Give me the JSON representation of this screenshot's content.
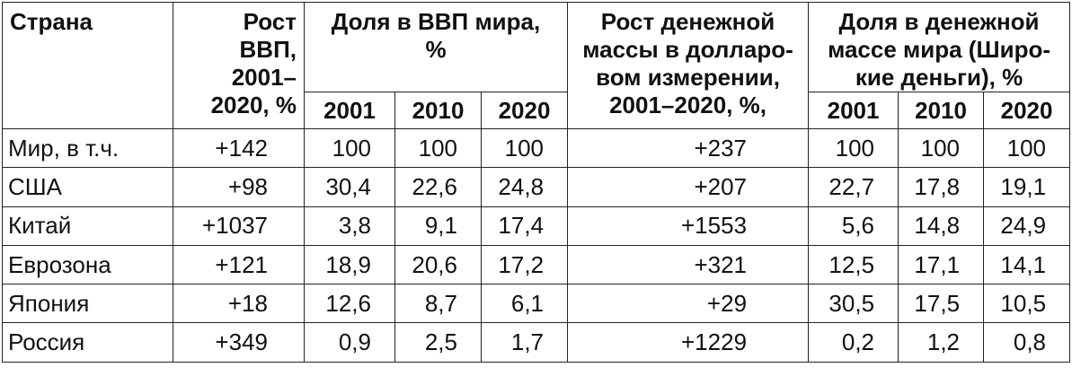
{
  "headers": {
    "country": "Страна",
    "gdp_growth": [
      "Рост",
      "ВВП,",
      "2001–",
      "2020, %"
    ],
    "gdp_share": [
      "Доля в ВВП мира,",
      "%"
    ],
    "money_growth": [
      "Рост денежной",
      "массы в долларо-",
      "вом измерении,",
      "2001–2020, %,"
    ],
    "money_share": [
      "Доля в денежной",
      "массе мира (Широ-",
      "кие деньги), %"
    ],
    "years": [
      "2001",
      "2010",
      "2020"
    ]
  },
  "rows": [
    {
      "country": "Мир, в т.ч.",
      "gdp_growth": "+142",
      "gdp_share": [
        "100",
        "100",
        "100"
      ],
      "money_growth": "+237",
      "money_share": [
        "100",
        "100",
        "100"
      ]
    },
    {
      "country": "США",
      "gdp_growth": "+98",
      "gdp_share": [
        "30,4",
        "22,6",
        "24,8"
      ],
      "money_growth": "+207",
      "money_share": [
        "22,7",
        "17,8",
        "19,1"
      ]
    },
    {
      "country": "Китай",
      "gdp_growth": "+1037",
      "gdp_share": [
        "3,8",
        "9,1",
        "17,4"
      ],
      "money_growth": "+1553",
      "money_share": [
        "5,6",
        "14,8",
        "24,9"
      ]
    },
    {
      "country": "Еврозона",
      "gdp_growth": "+121",
      "gdp_share": [
        "18,9",
        "20,6",
        "17,2"
      ],
      "money_growth": "+321",
      "money_share": [
        "12,5",
        "17,1",
        "14,1"
      ]
    },
    {
      "country": "Япония",
      "gdp_growth": "+18",
      "gdp_share": [
        "12,6",
        "8,7",
        "6,1"
      ],
      "money_growth": "+29",
      "money_share": [
        "30,5",
        "17,5",
        "10,5"
      ]
    },
    {
      "country": "Россия",
      "gdp_growth": "+349",
      "gdp_share": [
        "0,9",
        "2,5",
        "1,7"
      ],
      "money_growth": "+1229",
      "money_share": [
        "0,2",
        "1,2",
        "0,8"
      ]
    }
  ]
}
